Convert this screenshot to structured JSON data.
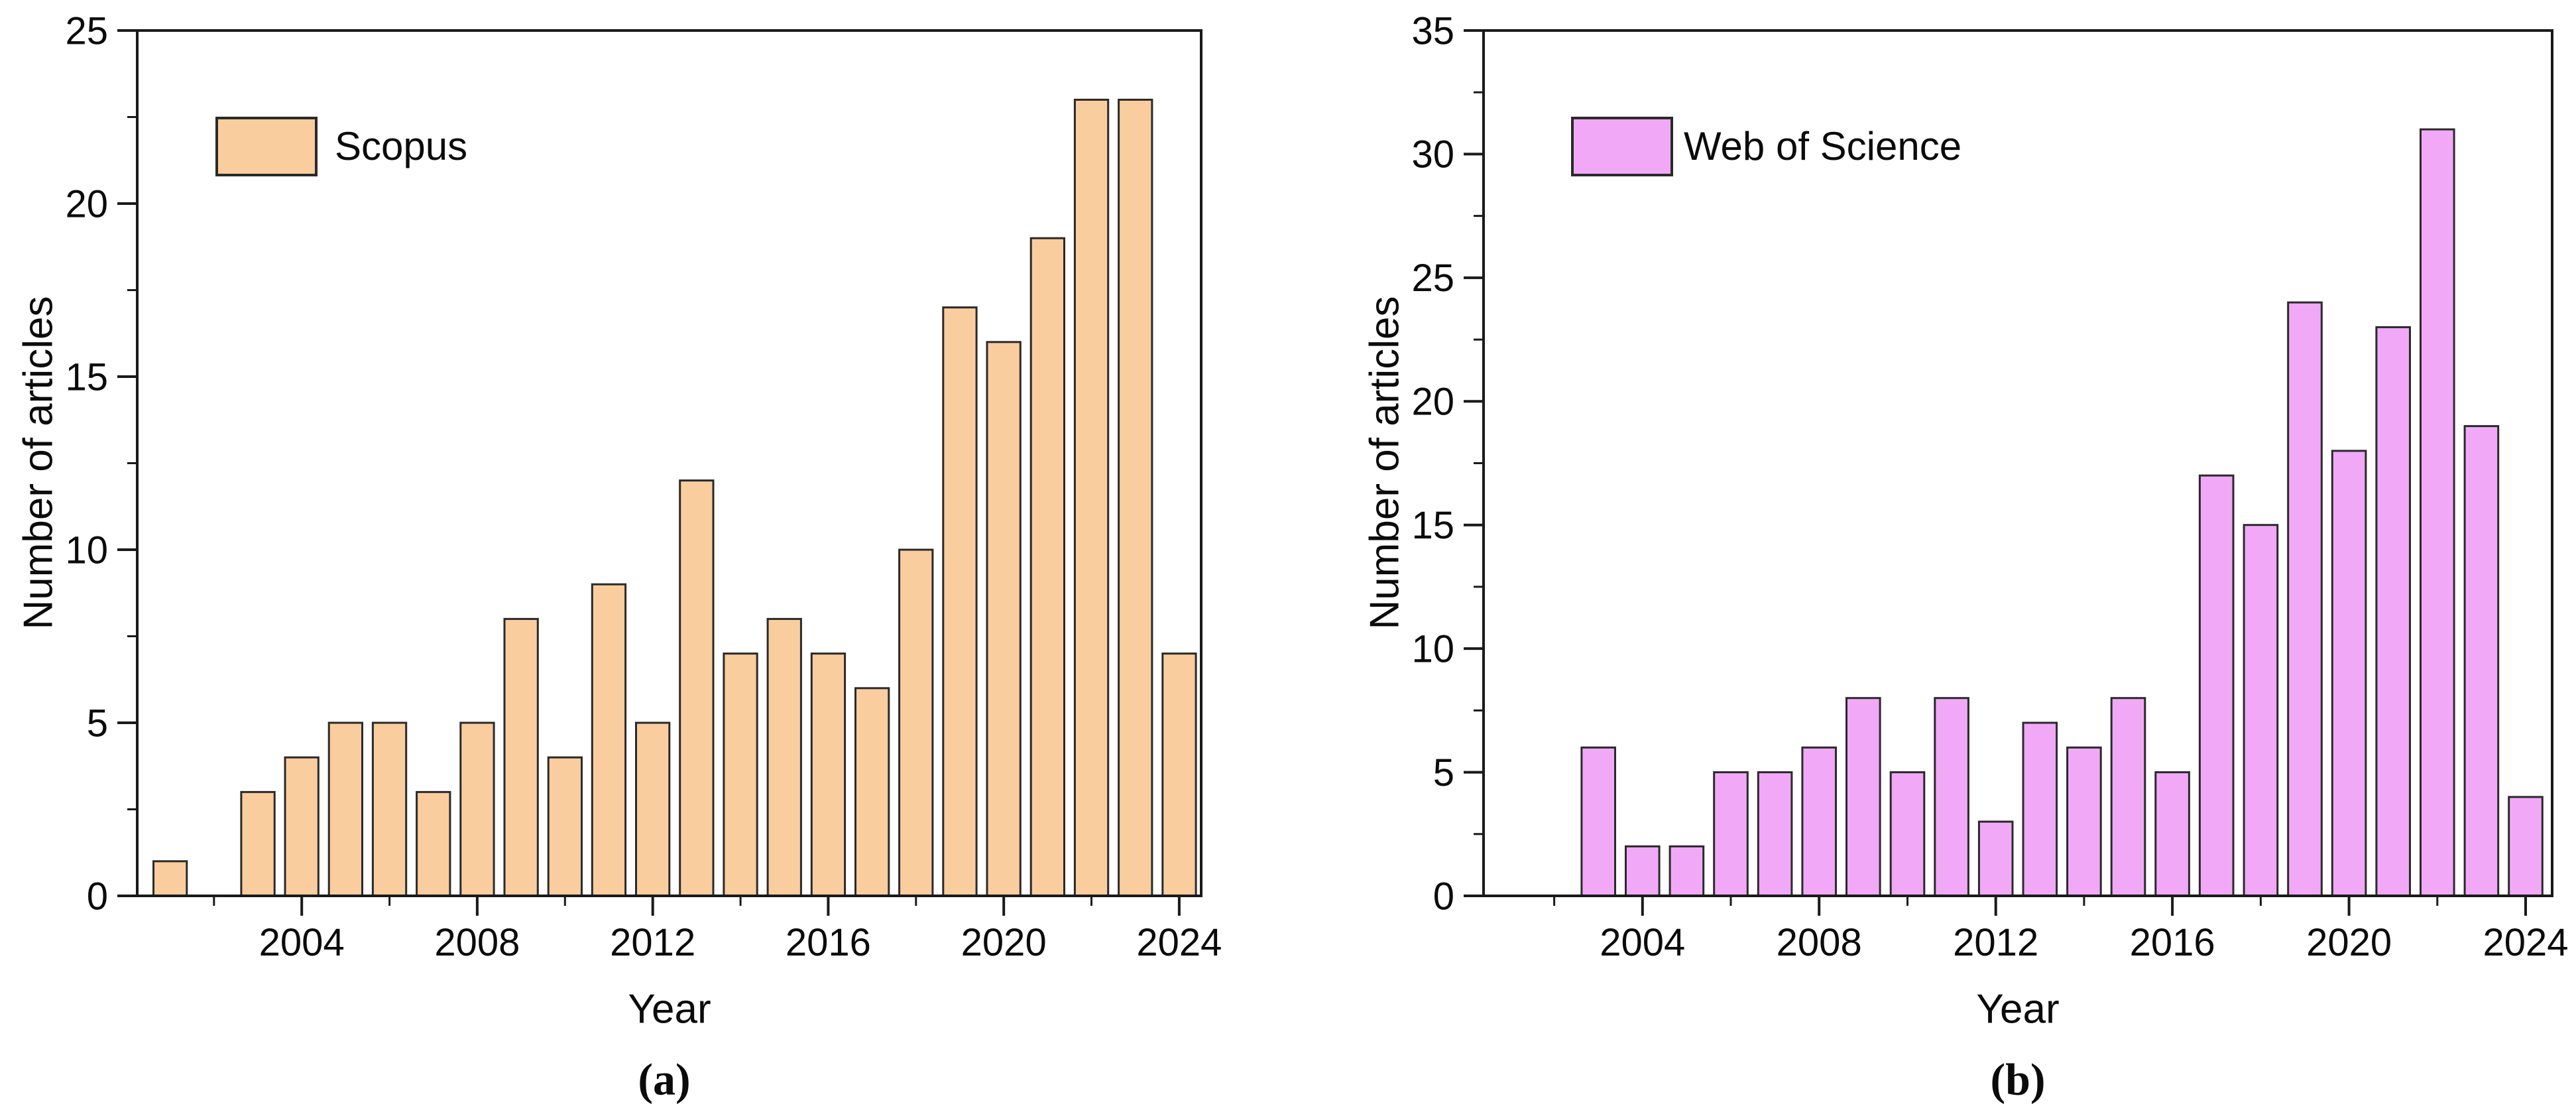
{
  "page": {
    "background": "#ffffff",
    "text_color": "#0b0b0b",
    "axis_color": "#1a1a1a"
  },
  "panels": [
    {
      "id": "a",
      "caption": "(a)",
      "legend": "Scopus",
      "xlabel": "Year",
      "ylabel": "Number of articles"
    },
    {
      "id": "b",
      "caption": "(b)",
      "legend": "Web of Science",
      "xlabel": "Year",
      "ylabel": "Number of articles"
    }
  ],
  "chart_data": [
    {
      "type": "bar",
      "title": "",
      "legend": "Scopus",
      "xlabel": "Year",
      "ylabel": "Number of articles",
      "bar_fill": "#FACD9E",
      "bar_stroke": "#2A2A2A",
      "x": [
        2001,
        2003,
        2004,
        2005,
        2006,
        2007,
        2008,
        2009,
        2010,
        2011,
        2012,
        2013,
        2014,
        2015,
        2016,
        2017,
        2018,
        2019,
        2020,
        2021,
        2022,
        2023,
        2024
      ],
      "values": [
        1,
        3,
        4,
        5,
        5,
        3,
        5,
        8,
        4,
        9,
        5,
        12,
        7,
        8,
        7,
        6,
        10,
        17,
        16,
        19,
        23,
        23,
        7
      ],
      "xlim": [
        2000.25,
        2024.5
      ],
      "ylim": [
        0,
        25
      ],
      "ytick_major": 5,
      "ytick_minor": 2.5,
      "yticks_labeled": [
        0,
        5,
        10,
        15,
        20,
        25
      ],
      "xticks_major": [
        2004,
        2008,
        2012,
        2016,
        2020,
        2024
      ],
      "xticks_minor": [
        2002,
        2006,
        2010,
        2014,
        2018,
        2022
      ],
      "grid": false,
      "legend_position": "upper-left"
    },
    {
      "type": "bar",
      "title": "",
      "legend": "Web of Science",
      "xlabel": "Year",
      "ylabel": "Number of articles",
      "bar_fill": "#F1A9F7",
      "bar_stroke": "#2A2A2A",
      "x": [
        2003,
        2004,
        2005,
        2006,
        2007,
        2008,
        2009,
        2010,
        2011,
        2012,
        2013,
        2014,
        2015,
        2016,
        2017,
        2018,
        2019,
        2020,
        2021,
        2022,
        2023,
        2024
      ],
      "values": [
        6,
        2,
        2,
        5,
        5,
        6,
        8,
        5,
        8,
        3,
        7,
        6,
        8,
        5,
        17,
        15,
        24,
        18,
        23,
        31,
        19,
        4
      ],
      "xlim": [
        2000.4,
        2024.6
      ],
      "ylim": [
        0,
        35
      ],
      "ytick_major": 5,
      "ytick_minor": 2.5,
      "yticks_labeled": [
        0,
        5,
        10,
        15,
        20,
        25,
        30,
        35
      ],
      "xticks_major": [
        2004,
        2008,
        2012,
        2016,
        2020,
        2024
      ],
      "xticks_minor": [
        2002,
        2006,
        2010,
        2014,
        2018,
        2022
      ],
      "grid": false,
      "legend_position": "upper-left"
    }
  ]
}
